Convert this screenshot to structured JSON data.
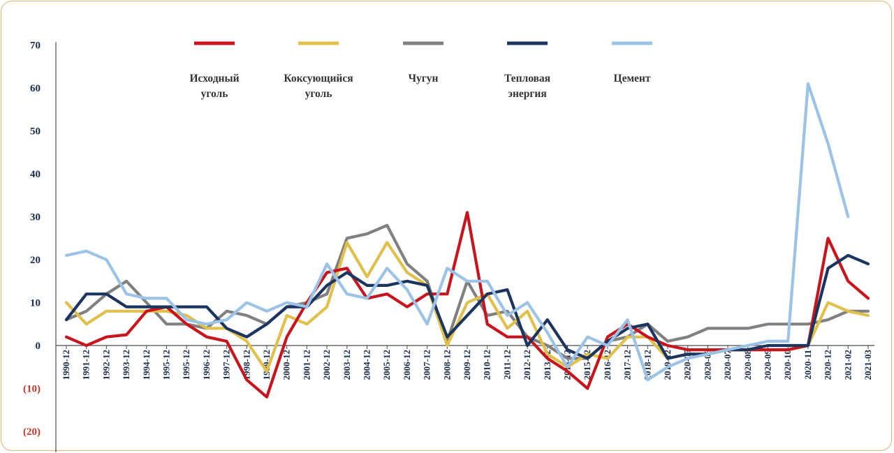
{
  "chart_data": {
    "type": "line",
    "title": "",
    "xlabel": "",
    "ylabel": "",
    "ylim": [
      -20,
      70
    ],
    "y_ticks": [
      {
        "value": 70,
        "label": "70"
      },
      {
        "value": 60,
        "label": "60"
      },
      {
        "value": 50,
        "label": "50"
      },
      {
        "value": 40,
        "label": "40"
      },
      {
        "value": 30,
        "label": "30"
      },
      {
        "value": 20,
        "label": "20"
      },
      {
        "value": 10,
        "label": "10"
      },
      {
        "value": 0,
        "label": "0"
      },
      {
        "value": -10,
        "label": "(10)"
      },
      {
        "value": -20,
        "label": "(20)"
      }
    ],
    "categories": [
      "1990-12",
      "1991-12",
      "1992-12",
      "1993-12",
      "1994-12",
      "1995-12",
      "1995-12",
      "1996-12",
      "1997-12",
      "1998-12",
      "1999-12",
      "2000-12",
      "2001-12",
      "2002-12",
      "2003-12",
      "2004-12",
      "2005-12",
      "2006-12",
      "2007-12",
      "2008-12",
      "2009-12",
      "2010-12",
      "2011-12",
      "2012-12",
      "2013-12",
      "2014-12",
      "2015-12",
      "2016-12",
      "2017-12",
      "2018-12",
      "2019-12",
      "2020-05",
      "2020-06",
      "2020-07",
      "2020-08",
      "2020-09",
      "2020-10",
      "2020-11",
      "2020-12",
      "2021-02",
      "2021-03"
    ],
    "grid": false,
    "legend_position": "top",
    "series": [
      {
        "name": "Исходный уголь",
        "color": "#c8151d",
        "values": [
          2,
          0,
          2,
          2.5,
          8,
          9,
          5,
          2,
          1,
          -8,
          -12,
          2,
          10,
          17,
          18,
          11,
          12,
          9,
          12,
          12,
          31,
          5,
          2,
          2,
          -3,
          -6,
          -10,
          2,
          5,
          2,
          0,
          -1,
          -1,
          -1,
          -1,
          -1,
          -1,
          0,
          25,
          15,
          11
        ]
      },
      {
        "name": "Коксующийся уголь",
        "color": "#e0c04a",
        "values": [
          10,
          5,
          8,
          8,
          8,
          8,
          7,
          4,
          4,
          1,
          -6,
          7,
          5,
          9,
          24,
          16,
          24,
          17,
          14,
          0,
          10,
          12,
          4,
          8,
          -2,
          -5,
          -2,
          -3,
          2,
          2,
          -3,
          -2,
          -2,
          -1,
          -1,
          -1,
          -1,
          0,
          10,
          8,
          7
        ]
      },
      {
        "name": "Чугун",
        "color": "#808080",
        "values": [
          6,
          8,
          12,
          15,
          10,
          5,
          5,
          4,
          8,
          7,
          5,
          9,
          10,
          12,
          25,
          26,
          28,
          19,
          15,
          1,
          15,
          7,
          8,
          2,
          0,
          -3,
          -3,
          1,
          2,
          5,
          1,
          2,
          4,
          4,
          4,
          5,
          5,
          5,
          6,
          8,
          8
        ]
      },
      {
        "name": "Тепловая энергия",
        "color": "#1c355e",
        "values": [
          6,
          12,
          12,
          9,
          9,
          9,
          9,
          9,
          4,
          2,
          5,
          9,
          9,
          14,
          17,
          14,
          14,
          15,
          14,
          2,
          7,
          12,
          13,
          0,
          6,
          -1,
          -3,
          1,
          4,
          5,
          -3,
          -2,
          -2,
          -1,
          -1,
          0,
          0,
          0,
          18,
          21,
          19
        ]
      },
      {
        "name": "Цемент",
        "color": "#9cc3e6",
        "values": [
          21,
          22,
          20,
          12,
          11,
          11,
          6,
          5,
          6,
          10,
          8,
          10,
          9,
          19,
          12,
          11,
          18,
          13,
          5,
          18,
          15,
          15,
          7,
          10,
          3,
          -5,
          2,
          0,
          6,
          -8,
          -5,
          -3,
          -2,
          -1,
          0,
          1,
          1,
          61,
          47,
          30,
          null
        ]
      }
    ]
  }
}
